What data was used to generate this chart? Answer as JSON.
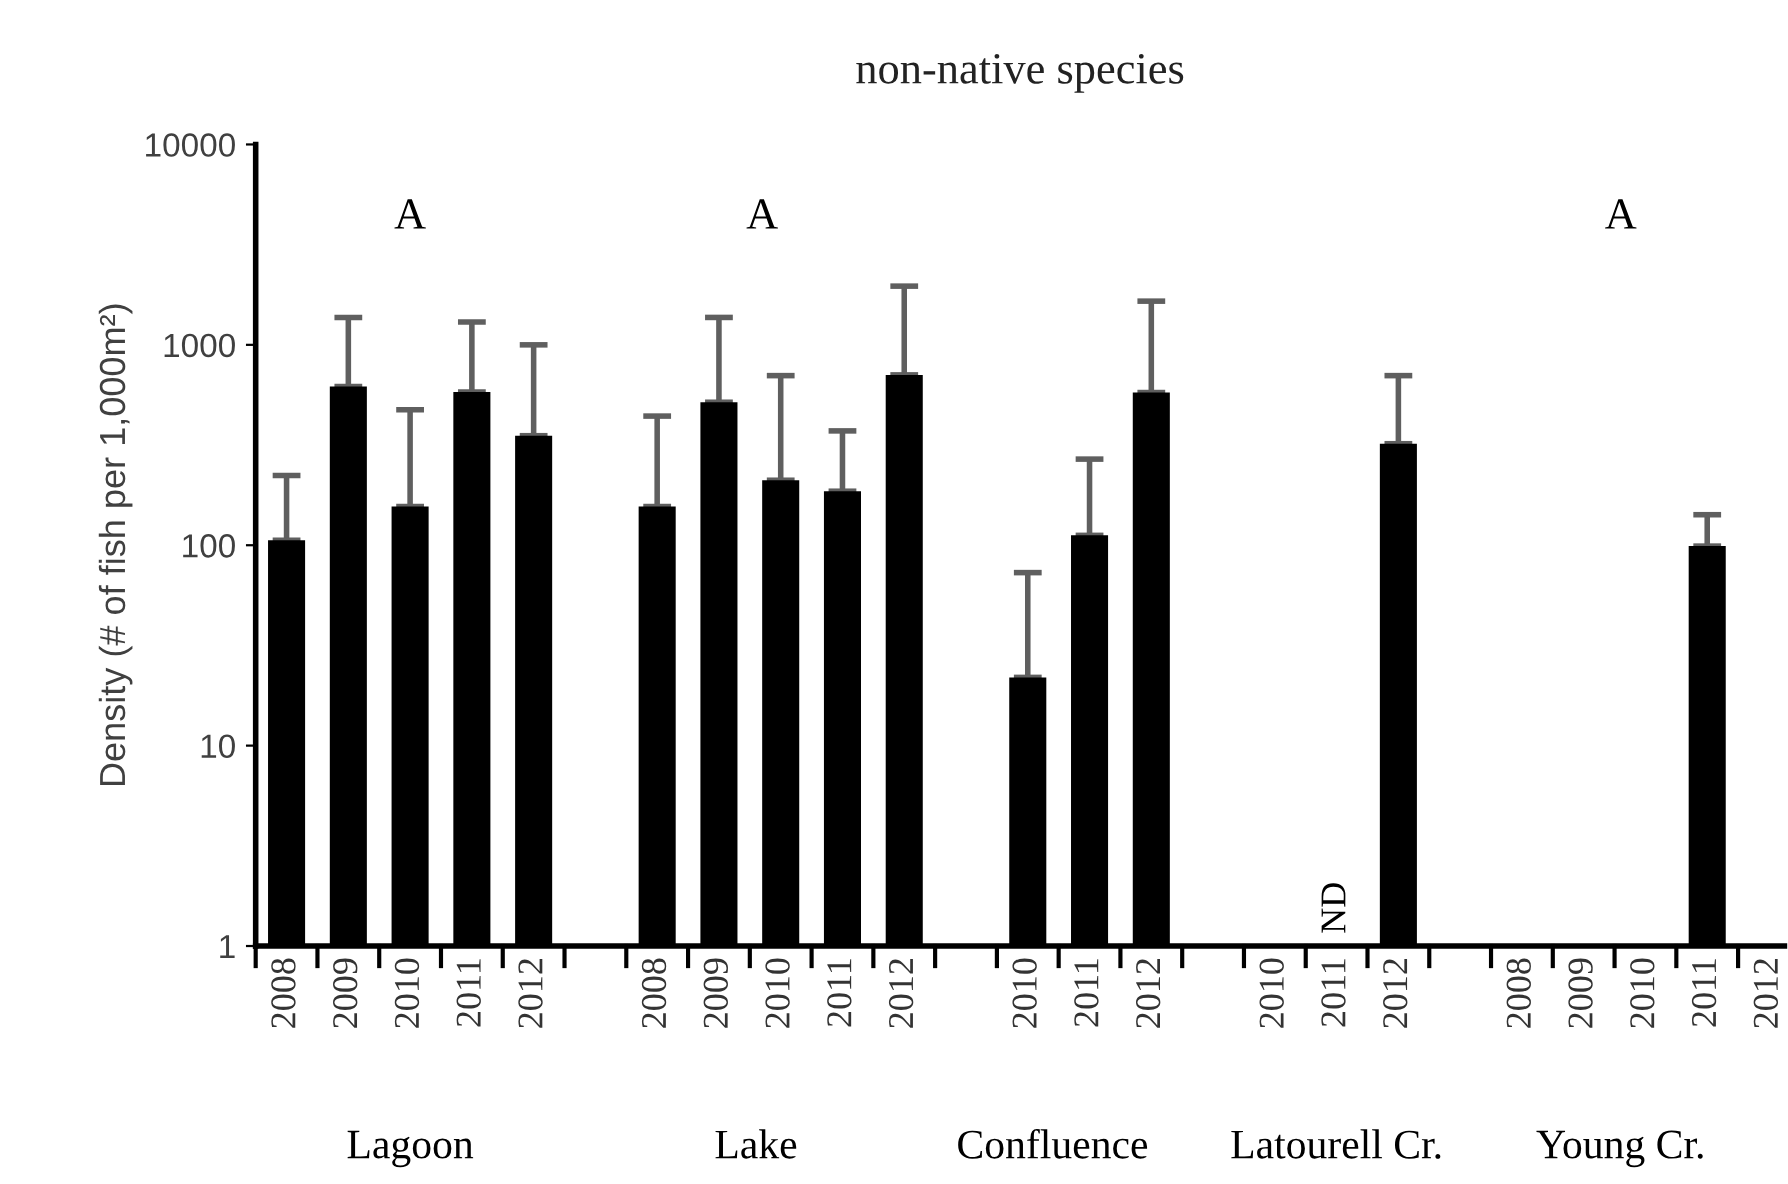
{
  "chart_data": {
    "type": "bar",
    "title": "non-native species",
    "ylabel": "Density (# of fish per 1,000m²)",
    "categories": [
      "2008",
      "2009",
      "2010",
      "2011",
      "2012",
      null,
      "2008",
      "2009",
      "2010",
      "2011",
      "2012",
      null,
      "2010",
      "2011",
      "2012",
      null,
      "2010",
      "2011",
      "2012",
      null,
      "2008",
      "2009",
      "2010",
      "2011",
      "2012"
    ],
    "values": [
      106,
      620,
      156,
      582,
      352,
      null,
      156,
      517,
      211,
      186,
      708,
      null,
      21.9,
      112,
      578,
      null,
      null,
      null,
      321,
      null,
      null,
      null,
      null,
      99,
      null
    ],
    "errors": [
      [
        106,
        223
      ],
      [
        620,
        1370
      ],
      [
        156,
        474
      ],
      [
        582,
        1301
      ],
      [
        352,
        1000
      ],
      null,
      [
        156,
        441
      ],
      [
        517,
        1370
      ],
      [
        211,
        702
      ],
      [
        186,
        372
      ],
      [
        708,
        1963
      ],
      null,
      [
        21.9,
        73
      ],
      [
        112,
        269
      ],
      [
        578,
        1652
      ],
      null,
      null,
      null,
      [
        321,
        702
      ],
      null,
      null,
      null,
      null,
      [
        99,
        142
      ],
      null
    ],
    "color": "#000000",
    "log": true,
    "ylim": [
      1,
      10000
    ],
    "yticks": [
      1,
      10,
      100,
      1000,
      10000
    ],
    "grid": false,
    "legend": false,
    "annotations": [
      "A",
      "A",
      "A",
      "ND",
      "Lagoon",
      "Lake",
      "Confluence",
      "Latourell Cr.",
      "Young Cr."
    ]
  }
}
